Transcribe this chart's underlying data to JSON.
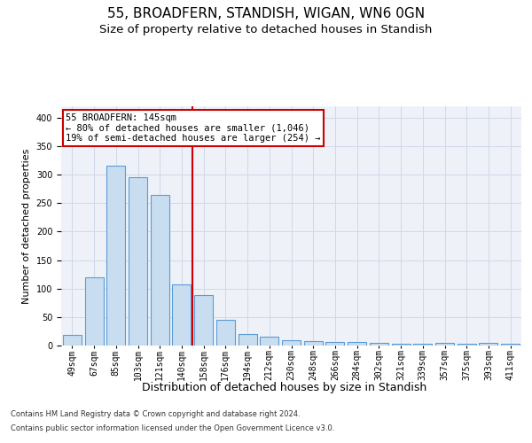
{
  "title": "55, BROADFERN, STANDISH, WIGAN, WN6 0GN",
  "subtitle": "Size of property relative to detached houses in Standish",
  "xlabel": "Distribution of detached houses by size in Standish",
  "ylabel": "Number of detached properties",
  "categories": [
    "49sqm",
    "67sqm",
    "85sqm",
    "103sqm",
    "121sqm",
    "140sqm",
    "158sqm",
    "176sqm",
    "194sqm",
    "212sqm",
    "230sqm",
    "248sqm",
    "266sqm",
    "284sqm",
    "302sqm",
    "321sqm",
    "339sqm",
    "357sqm",
    "375sqm",
    "393sqm",
    "411sqm"
  ],
  "values": [
    19,
    120,
    315,
    295,
    265,
    108,
    89,
    45,
    20,
    16,
    9,
    8,
    7,
    6,
    5,
    3,
    3,
    5,
    3,
    5,
    3
  ],
  "bar_color": "#c9ddf0",
  "bar_edge_color": "#5b9bd5",
  "vline_x": 5.5,
  "vline_color": "#cc0000",
  "annotation_line1": "55 BROADFERN: 145sqm",
  "annotation_line2": "← 80% of detached houses are smaller (1,046)",
  "annotation_line3": "19% of semi-detached houses are larger (254) →",
  "annotation_box_color": "#ffffff",
  "annotation_box_edge_color": "#cc0000",
  "ylim": [
    0,
    420
  ],
  "grid_color": "#d0d8e8",
  "background_color": "#eef2f8",
  "footer_line1": "Contains HM Land Registry data © Crown copyright and database right 2024.",
  "footer_line2": "Contains public sector information licensed under the Open Government Licence v3.0.",
  "title_fontsize": 11,
  "subtitle_fontsize": 9.5,
  "xlabel_fontsize": 9,
  "ylabel_fontsize": 8,
  "tick_fontsize": 7,
  "annotation_fontsize": 7.5,
  "footer_fontsize": 6
}
